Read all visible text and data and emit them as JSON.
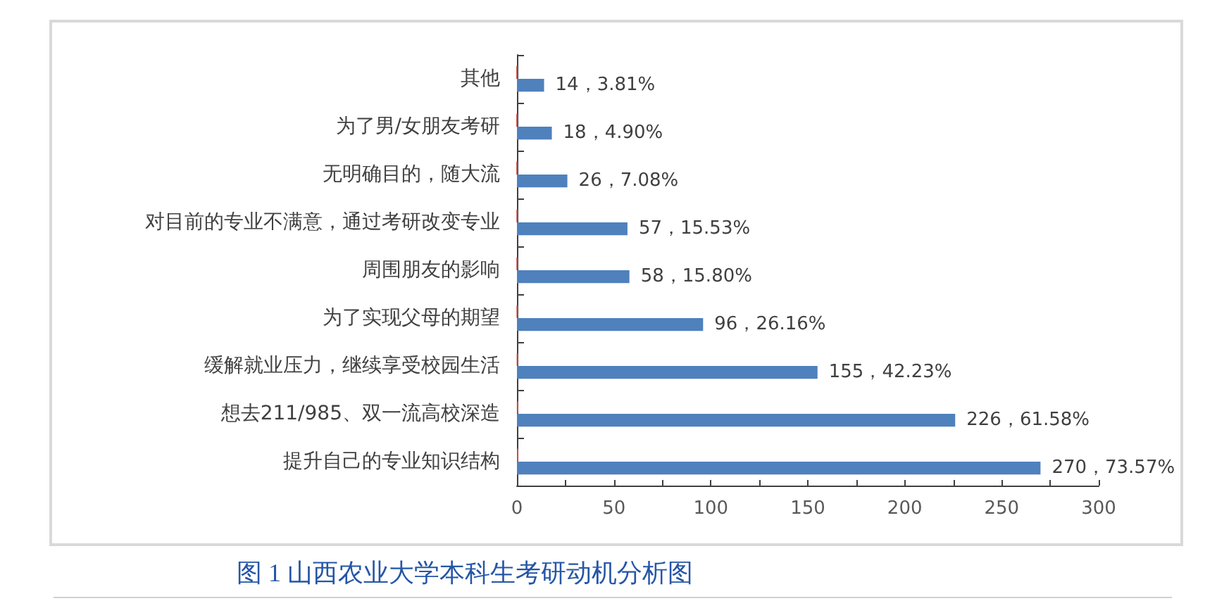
{
  "chart_data": {
    "type": "bar",
    "orientation": "horizontal",
    "title": "图 1 山西农业大学本科生考研动机分析图",
    "categories": [
      "其他",
      "为了男/女朋友考研",
      "无明确目的，随大流",
      "对目前的专业不满意，通过考研改变专业",
      "周围朋友的影响",
      "为了实现父母的期望",
      "缓解就业压力，继续享受校园生活",
      "想去211/985、双一流高校深造",
      "提升自己的专业知识结构"
    ],
    "series": [
      {
        "color": "#c0504d",
        "values": [
          0.04,
          0.05,
          0.07,
          0.16,
          0.16,
          0.26,
          0.42,
          0.62,
          0.74
        ]
      },
      {
        "color": "#4f81bd",
        "values": [
          14,
          18,
          26,
          57,
          58,
          96,
          155,
          226,
          270
        ],
        "value_labels": [
          "14，3.81%",
          "18，4.90%",
          "26，7.08%",
          "57，15.53%",
          "58，15.80%",
          "96，26.16%",
          "155，42.23%",
          "226，61.58%",
          "270，73.57%"
        ]
      }
    ],
    "xlim": [
      0,
      300
    ],
    "xticks": [
      0,
      {
        "value": 25,
        "label": null
      },
      50,
      {
        "value": 75,
        "label": null
      },
      100,
      {
        "value": 125,
        "label": null
      },
      150,
      {
        "value": 175,
        "label": null
      },
      200,
      {
        "value": 225,
        "label": null
      },
      250,
      {
        "value": 275,
        "label": null
      },
      300
    ]
  }
}
